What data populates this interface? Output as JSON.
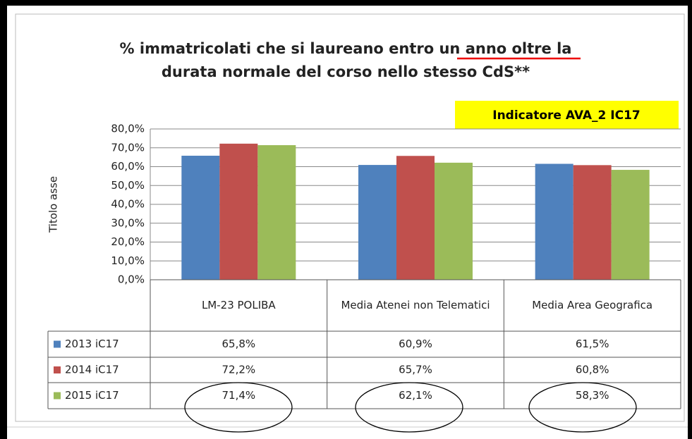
{
  "chart_data": {
    "type": "bar",
    "title_lines": [
      "% immatricolati che si laureano entro un anno oltre la",
      "durata normale del corso nello stesso CdS**"
    ],
    "annotation": "Indicatore AVA_2 IC17",
    "y_label": "Titolo asse",
    "categories": [
      "LM-23 POLIBA",
      "Media Atenei non Telematici",
      "Media Area Geografica"
    ],
    "series": [
      {
        "name": "2013 iC17",
        "color": "#4f81bd",
        "values": [
          65.8,
          60.9,
          61.5
        ],
        "value_labels": [
          "65,8%",
          "60,9%",
          "61,5%"
        ]
      },
      {
        "name": "2014 iC17",
        "color": "#c0504d",
        "values": [
          72.2,
          65.7,
          60.8
        ],
        "value_labels": [
          "72,2%",
          "65,7%",
          "60,8%"
        ]
      },
      {
        "name": "2015 iC17",
        "color": "#9bbb59",
        "values": [
          71.4,
          62.1,
          58.3
        ],
        "value_labels": [
          "71,4%",
          "62,1%",
          "58,3%"
        ]
      }
    ],
    "ylim": [
      0,
      80
    ],
    "yticks": [
      {
        "value": 0,
        "label": "0,0%"
      },
      {
        "value": 10,
        "label": "10,0%"
      },
      {
        "value": 20,
        "label": "20,0%"
      },
      {
        "value": 30,
        "label": "30,0%"
      },
      {
        "value": 40,
        "label": "40,0%"
      },
      {
        "value": 50,
        "label": "50,0%"
      },
      {
        "value": 60,
        "label": "60,0%"
      },
      {
        "value": 70,
        "label": "70,0%"
      },
      {
        "value": 80,
        "label": "80,0%"
      }
    ],
    "grid": true
  }
}
